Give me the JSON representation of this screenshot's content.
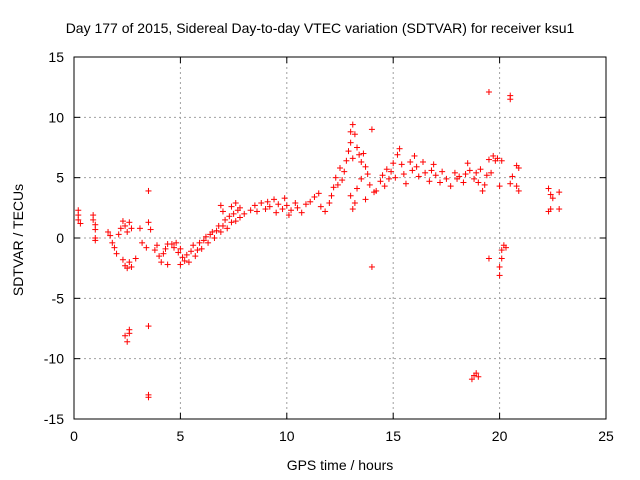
{
  "chart_data": {
    "type": "scatter",
    "title": "Day 177 of 2015, Sidereal Day-to-day VTEC variation (SDTVAR) for receiver ksu1",
    "xlabel": "GPS time / hours",
    "ylabel": "SDTVAR / TECUs",
    "xlim": [
      0,
      25
    ],
    "ylim": [
      -15,
      15
    ],
    "xticks": [
      "0",
      "5",
      "10",
      "15",
      "20",
      "25"
    ],
    "yticks": [
      "-15",
      "-10",
      "-5",
      "0",
      "5",
      "10",
      "15"
    ],
    "grid": true,
    "marker": "+",
    "color": "#ff0000",
    "series": [
      {
        "name": "SDTVAR",
        "points": [
          [
            0.2,
            2.3
          ],
          [
            0.2,
            1.9
          ],
          [
            0.2,
            1.5
          ],
          [
            0.3,
            1.2
          ],
          [
            0.9,
            1.9
          ],
          [
            0.9,
            1.5
          ],
          [
            1.0,
            1.1
          ],
          [
            1.0,
            0.7
          ],
          [
            1.0,
            0.0
          ],
          [
            1.0,
            -0.2
          ],
          [
            1.6,
            0.5
          ],
          [
            1.7,
            0.2
          ],
          [
            1.8,
            -0.4
          ],
          [
            1.9,
            -0.8
          ],
          [
            2.0,
            -1.3
          ],
          [
            2.1,
            0.3
          ],
          [
            2.2,
            0.8
          ],
          [
            2.3,
            1.4
          ],
          [
            2.4,
            1.0
          ],
          [
            2.5,
            0.5
          ],
          [
            2.6,
            1.3
          ],
          [
            2.7,
            0.8
          ],
          [
            2.3,
            -1.8
          ],
          [
            2.4,
            -2.3
          ],
          [
            2.5,
            -2.5
          ],
          [
            2.6,
            -2.0
          ],
          [
            2.7,
            -2.4
          ],
          [
            2.4,
            -8.1
          ],
          [
            2.5,
            -8.6
          ],
          [
            2.6,
            -7.9
          ],
          [
            2.6,
            -7.6
          ],
          [
            2.9,
            -1.7
          ],
          [
            3.1,
            0.8
          ],
          [
            3.2,
            -0.4
          ],
          [
            3.4,
            -0.8
          ],
          [
            3.5,
            1.3
          ],
          [
            3.6,
            0.7
          ],
          [
            3.5,
            -7.3
          ],
          [
            3.5,
            3.9
          ],
          [
            3.5,
            -13.0
          ],
          [
            3.5,
            -13.2
          ],
          [
            3.8,
            -1.0
          ],
          [
            3.9,
            -0.6
          ],
          [
            4.0,
            -1.5
          ],
          [
            4.1,
            -2.0
          ],
          [
            4.2,
            -1.3
          ],
          [
            4.3,
            -0.9
          ],
          [
            4.4,
            -0.5
          ],
          [
            4.4,
            -2.2
          ],
          [
            4.6,
            -0.5
          ],
          [
            4.7,
            -0.8
          ],
          [
            4.8,
            -0.4
          ],
          [
            4.9,
            -1.2
          ],
          [
            5.0,
            -2.2
          ],
          [
            5.0,
            -0.9
          ],
          [
            5.1,
            -1.6
          ],
          [
            5.2,
            -1.9
          ],
          [
            5.3,
            -1.4
          ],
          [
            5.4,
            -2.0
          ],
          [
            5.5,
            -1.1
          ],
          [
            5.6,
            -0.6
          ],
          [
            5.7,
            -1.5
          ],
          [
            5.8,
            -1.0
          ],
          [
            5.9,
            -0.4
          ],
          [
            6.0,
            -0.9
          ],
          [
            6.1,
            -0.2
          ],
          [
            6.2,
            0.1
          ],
          [
            6.3,
            -0.4
          ],
          [
            6.4,
            0.3
          ],
          [
            6.5,
            0.5
          ],
          [
            6.6,
            0.0
          ],
          [
            6.7,
            0.6
          ],
          [
            6.8,
            1.0
          ],
          [
            6.9,
            0.5
          ],
          [
            6.9,
            2.7
          ],
          [
            7.0,
            1.0
          ],
          [
            7.0,
            2.2
          ],
          [
            7.1,
            1.5
          ],
          [
            7.2,
            0.8
          ],
          [
            7.3,
            1.8
          ],
          [
            7.4,
            1.3
          ],
          [
            7.5,
            2.0
          ],
          [
            7.6,
            1.4
          ],
          [
            7.7,
            2.3
          ],
          [
            7.8,
            1.7
          ],
          [
            7.4,
            2.6
          ],
          [
            7.6,
            2.9
          ],
          [
            7.8,
            2.5
          ],
          [
            8.0,
            2.0
          ],
          [
            8.3,
            2.3
          ],
          [
            8.5,
            2.7
          ],
          [
            8.6,
            2.2
          ],
          [
            8.8,
            2.9
          ],
          [
            9.0,
            2.4
          ],
          [
            9.1,
            3.0
          ],
          [
            9.2,
            2.6
          ],
          [
            9.4,
            3.2
          ],
          [
            9.5,
            2.1
          ],
          [
            9.6,
            2.8
          ],
          [
            9.8,
            2.4
          ],
          [
            9.9,
            3.3
          ],
          [
            10.0,
            2.7
          ],
          [
            10.1,
            1.9
          ],
          [
            10.2,
            2.3
          ],
          [
            10.4,
            2.9
          ],
          [
            10.5,
            2.5
          ],
          [
            10.7,
            2.1
          ],
          [
            10.9,
            2.8
          ],
          [
            11.1,
            3.0
          ],
          [
            11.3,
            3.4
          ],
          [
            11.5,
            3.7
          ],
          [
            11.6,
            2.6
          ],
          [
            11.8,
            2.2
          ],
          [
            12.0,
            2.9
          ],
          [
            12.1,
            3.5
          ],
          [
            12.2,
            4.2
          ],
          [
            12.3,
            5.0
          ],
          [
            12.4,
            4.4
          ],
          [
            12.5,
            5.8
          ],
          [
            12.6,
            4.8
          ],
          [
            12.7,
            5.5
          ],
          [
            12.8,
            6.4
          ],
          [
            12.9,
            7.2
          ],
          [
            13.0,
            7.9
          ],
          [
            13.0,
            8.8
          ],
          [
            13.1,
            9.4
          ],
          [
            13.1,
            6.6
          ],
          [
            13.2,
            8.6
          ],
          [
            13.3,
            7.5
          ],
          [
            13.4,
            6.9
          ],
          [
            13.5,
            6.3
          ],
          [
            13.6,
            7.0
          ],
          [
            13.7,
            5.9
          ],
          [
            13.8,
            5.3
          ],
          [
            13.0,
            3.5
          ],
          [
            13.1,
            2.4
          ],
          [
            13.2,
            2.9
          ],
          [
            13.3,
            4.1
          ],
          [
            13.5,
            4.9
          ],
          [
            13.7,
            3.2
          ],
          [
            13.9,
            4.4
          ],
          [
            14.0,
            9.0
          ],
          [
            14.1,
            3.8
          ],
          [
            14.0,
            -2.4
          ],
          [
            14.2,
            3.9
          ],
          [
            14.4,
            4.7
          ],
          [
            14.5,
            5.2
          ],
          [
            14.6,
            4.3
          ],
          [
            14.7,
            5.7
          ],
          [
            14.8,
            4.9
          ],
          [
            14.9,
            5.5
          ],
          [
            15.0,
            6.2
          ],
          [
            15.1,
            5.0
          ],
          [
            15.2,
            6.9
          ],
          [
            15.3,
            7.4
          ],
          [
            15.4,
            6.1
          ],
          [
            15.5,
            5.3
          ],
          [
            15.6,
            4.5
          ],
          [
            15.8,
            6.3
          ],
          [
            15.9,
            5.6
          ],
          [
            16.0,
            6.8
          ],
          [
            16.1,
            5.9
          ],
          [
            16.2,
            5.1
          ],
          [
            16.4,
            6.3
          ],
          [
            16.5,
            5.4
          ],
          [
            16.7,
            4.7
          ],
          [
            16.8,
            5.6
          ],
          [
            16.9,
            6.1
          ],
          [
            17.0,
            5.2
          ],
          [
            17.2,
            4.6
          ],
          [
            17.3,
            5.5
          ],
          [
            17.5,
            4.9
          ],
          [
            17.7,
            4.3
          ],
          [
            17.9,
            5.4
          ],
          [
            18.0,
            4.9
          ],
          [
            18.1,
            5.1
          ],
          [
            18.3,
            4.6
          ],
          [
            18.4,
            5.3
          ],
          [
            18.5,
            6.2
          ],
          [
            18.6,
            5.6
          ],
          [
            18.8,
            4.9
          ],
          [
            18.9,
            5.4
          ],
          [
            19.0,
            4.6
          ],
          [
            19.1,
            5.7
          ],
          [
            19.2,
            3.9
          ],
          [
            19.3,
            4.4
          ],
          [
            19.4,
            5.2
          ],
          [
            19.5,
            6.5
          ],
          [
            19.5,
            12.1
          ],
          [
            19.6,
            5.4
          ],
          [
            19.7,
            6.8
          ],
          [
            19.8,
            6.4
          ],
          [
            19.9,
            6.6
          ],
          [
            20.0,
            4.3
          ],
          [
            20.1,
            6.4
          ],
          [
            19.5,
            -1.7
          ],
          [
            20.0,
            -3.1
          ],
          [
            20.0,
            -2.4
          ],
          [
            20.1,
            -1.7
          ],
          [
            20.1,
            -1.0
          ],
          [
            20.2,
            -0.6
          ],
          [
            20.3,
            -0.8
          ],
          [
            20.5,
            11.8
          ],
          [
            20.5,
            11.5
          ],
          [
            20.5,
            4.5
          ],
          [
            20.6,
            5.1
          ],
          [
            20.8,
            6.0
          ],
          [
            20.8,
            4.3
          ],
          [
            20.9,
            5.8
          ],
          [
            20.9,
            3.9
          ],
          [
            18.7,
            -11.7
          ],
          [
            18.8,
            -11.4
          ],
          [
            18.9,
            -11.2
          ],
          [
            19.0,
            -11.5
          ],
          [
            22.3,
            4.1
          ],
          [
            22.4,
            3.6
          ],
          [
            22.5,
            3.3
          ],
          [
            22.3,
            2.2
          ],
          [
            22.4,
            2.4
          ],
          [
            22.8,
            3.8
          ],
          [
            22.8,
            2.4
          ]
        ]
      }
    ]
  }
}
